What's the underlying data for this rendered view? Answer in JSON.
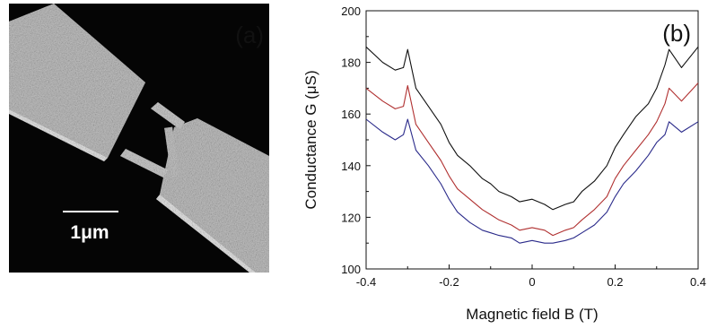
{
  "panel_a": {
    "label": "(a)",
    "scalebar_label": "1μm",
    "colors": {
      "background": "#050505",
      "electrode": "#c8c8c8",
      "label": "#ffffff"
    }
  },
  "chart_data": {
    "type": "line",
    "panel_label": "(b)",
    "xlabel": "Magnetic field B (T)",
    "ylabel": "Conductance G (μS)",
    "xlim": [
      -0.4,
      0.4
    ],
    "ylim": [
      100,
      200
    ],
    "xticks": [
      -0.4,
      -0.2,
      0,
      0.2,
      0.4
    ],
    "xtick_labels": [
      "-0.4",
      "-0.2",
      "0",
      "0.2",
      "0.4"
    ],
    "yticks": [
      100,
      120,
      140,
      160,
      180,
      200
    ],
    "ytick_labels": [
      "100",
      "120",
      "140",
      "160",
      "180",
      "200"
    ],
    "grid": false,
    "legend": "none",
    "x": [
      -0.4,
      -0.36,
      -0.33,
      -0.31,
      -0.3,
      -0.28,
      -0.25,
      -0.22,
      -0.2,
      -0.18,
      -0.15,
      -0.12,
      -0.1,
      -0.08,
      -0.05,
      -0.03,
      0,
      0.03,
      0.05,
      0.08,
      0.1,
      0.12,
      0.15,
      0.18,
      0.2,
      0.22,
      0.25,
      0.28,
      0.3,
      0.32,
      0.33,
      0.36,
      0.4
    ],
    "series": [
      {
        "color": "#111111",
        "values": [
          186,
          180,
          177,
          178,
          185,
          170,
          163,
          156,
          149,
          144,
          140,
          135,
          133,
          130,
          128,
          126,
          127,
          125,
          123,
          125,
          126,
          130,
          134,
          140,
          147,
          152,
          159,
          164,
          170,
          179,
          185,
          178,
          186
        ]
      },
      {
        "color": "#b03030",
        "values": [
          170,
          165,
          162,
          163,
          171,
          156,
          149,
          142,
          136,
          131,
          127,
          123,
          121,
          119,
          117,
          115,
          116,
          115,
          113,
          115,
          116,
          119,
          123,
          128,
          135,
          140,
          146,
          152,
          157,
          164,
          170,
          165,
          172
        ]
      },
      {
        "color": "#2a2a8a",
        "values": [
          158,
          153,
          150,
          152,
          158,
          146,
          140,
          133,
          127,
          122,
          118,
          115,
          114,
          113,
          112,
          110,
          111,
          110,
          110,
          111,
          112,
          114,
          117,
          122,
          128,
          133,
          138,
          144,
          149,
          152,
          157,
          153,
          157
        ]
      }
    ]
  }
}
